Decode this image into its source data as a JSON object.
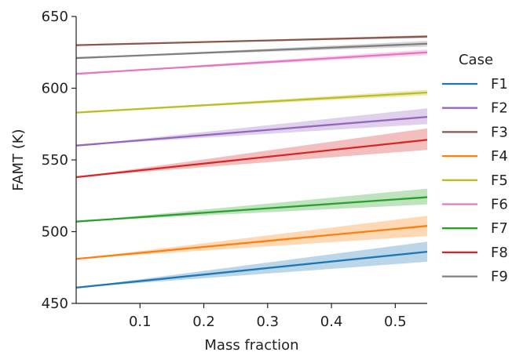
{
  "chart_data": {
    "type": "line",
    "xlabel": "Mass fraction",
    "ylabel": "FAMT (K)",
    "xlim": [
      0.0,
      0.55
    ],
    "ylim": [
      450,
      650
    ],
    "xticks": [
      0.1,
      0.2,
      0.3,
      0.4,
      0.5
    ],
    "xtick_labels": [
      "0.1",
      "0.2",
      "0.3",
      "0.4",
      "0.5"
    ],
    "yticks": [
      450,
      500,
      550,
      600,
      650
    ],
    "ytick_labels": [
      "450",
      "500",
      "550",
      "600",
      "650"
    ],
    "grid": false,
    "legend_title": "Case",
    "legend_position": "right",
    "series": [
      {
        "name": "F1",
        "color": "#1f77b4",
        "x": [
          0.0,
          0.55
        ],
        "y": [
          461,
          486
        ],
        "band_upper": [
          461,
          493
        ],
        "band_lower": [
          461,
          479
        ]
      },
      {
        "name": "F2",
        "color": "#9467bd",
        "x": [
          0.0,
          0.55
        ],
        "y": [
          560,
          580
        ],
        "band_upper": [
          560,
          586
        ],
        "band_lower": [
          560,
          575
        ]
      },
      {
        "name": "F3",
        "color": "#8c564b",
        "x": [
          0.0,
          0.55
        ],
        "y": [
          630,
          636
        ],
        "band_upper": [
          630,
          637
        ],
        "band_lower": [
          630,
          635
        ]
      },
      {
        "name": "F4",
        "color": "#ff7f0e",
        "x": [
          0.0,
          0.55
        ],
        "y": [
          481,
          504
        ],
        "band_upper": [
          481,
          511
        ],
        "band_lower": [
          481,
          497
        ]
      },
      {
        "name": "F5",
        "color": "#bcbd22",
        "x": [
          0.0,
          0.55
        ],
        "y": [
          583,
          597
        ],
        "band_upper": [
          583,
          599
        ],
        "band_lower": [
          583,
          595
        ]
      },
      {
        "name": "F6",
        "color": "#e377c2",
        "x": [
          0.0,
          0.55
        ],
        "y": [
          610,
          625
        ],
        "band_upper": [
          610,
          627
        ],
        "band_lower": [
          610,
          623
        ]
      },
      {
        "name": "F7",
        "color": "#2ca02c",
        "x": [
          0.0,
          0.55
        ],
        "y": [
          507,
          524
        ],
        "band_upper": [
          507,
          530
        ],
        "band_lower": [
          507,
          519
        ]
      },
      {
        "name": "F8",
        "color": "#d62728",
        "x": [
          0.0,
          0.55
        ],
        "y": [
          538,
          564
        ],
        "band_upper": [
          538,
          572
        ],
        "band_lower": [
          538,
          557
        ]
      },
      {
        "name": "F9",
        "color": "#7f7f7f",
        "x": [
          0.0,
          0.55
        ],
        "y": [
          621,
          631
        ],
        "band_upper": [
          621,
          633
        ],
        "band_lower": [
          621,
          629
        ]
      }
    ]
  }
}
